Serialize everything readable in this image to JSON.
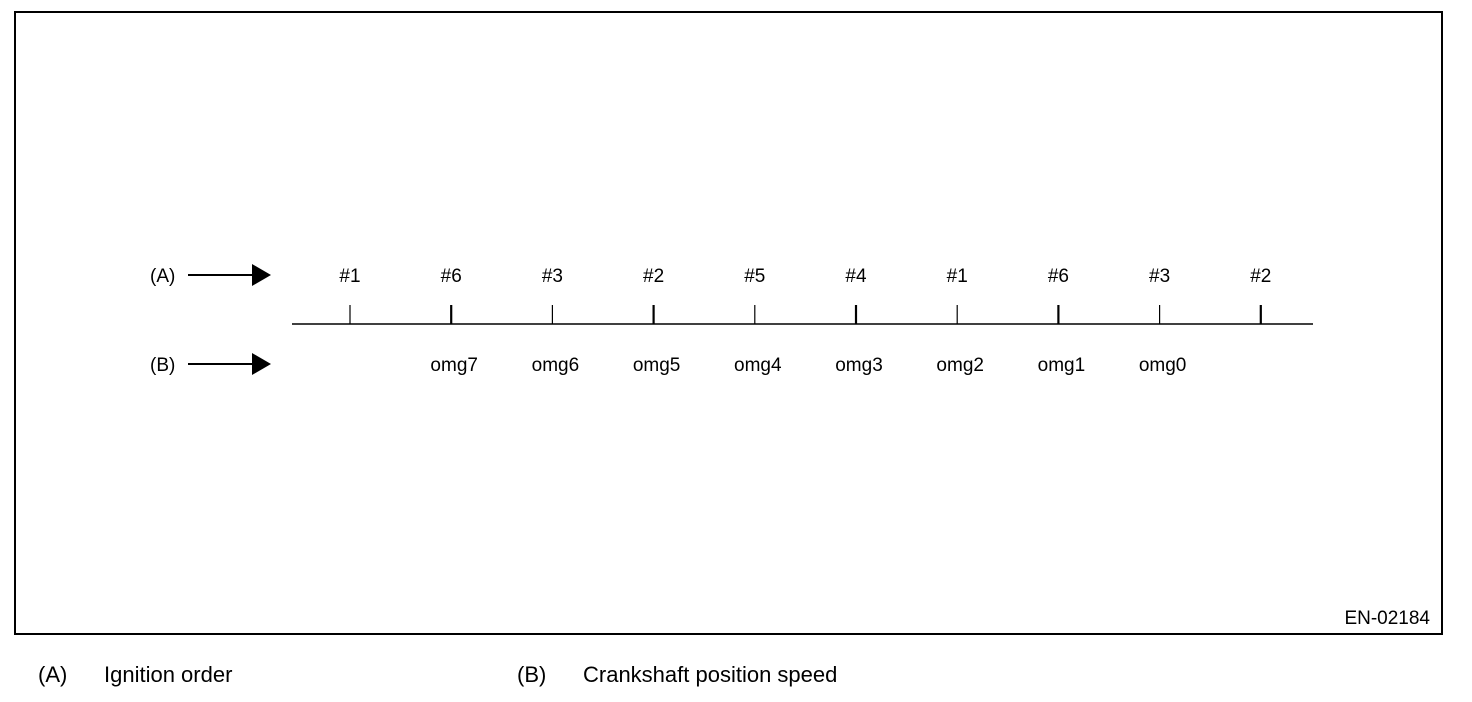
{
  "row_a": {
    "marker": "(A)",
    "labels": [
      "#1",
      "#6",
      "#3",
      "#2",
      "#5",
      "#4",
      "#1",
      "#6",
      "#3",
      "#2"
    ]
  },
  "row_b": {
    "marker": "(B)",
    "labels": [
      "omg7",
      "omg6",
      "omg5",
      "omg4",
      "omg3",
      "omg2",
      "omg1",
      "omg0"
    ]
  },
  "figure_code": "EN-02184",
  "legend": [
    {
      "tag": "(A)",
      "text": "Ignition order"
    },
    {
      "tag": "(B)",
      "text": "Crankshaft position speed"
    }
  ]
}
